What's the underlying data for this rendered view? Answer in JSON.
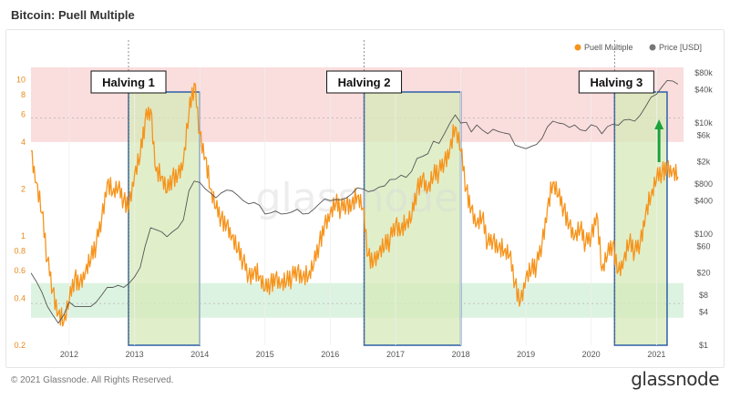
{
  "page": {
    "title": "Bitcoin: Puell Multiple",
    "copyright": "© 2021 Glassnode. All Rights Reserved.",
    "brand": "glassnode",
    "watermark": "glassnode"
  },
  "colors": {
    "puell": "#f7931a",
    "price": "#555555",
    "upper_band": "#f9d5d5",
    "lower_band": "#d5f0da",
    "halving_fill": "#d6eab8",
    "halving_border": "#2e5fa8",
    "arrow": "#1aa33a"
  },
  "chart_data": {
    "type": "line",
    "title": "Bitcoin: Puell Multiple",
    "legend": {
      "placement": "top-right",
      "items": [
        {
          "name": "Puell Multiple",
          "color": "#f7931a"
        },
        {
          "name": "Price [USD]",
          "color": "#777777"
        }
      ]
    },
    "x_axis": {
      "type": "date",
      "range": [
        "2011-06-01",
        "2021-06-01"
      ],
      "tick_labels": [
        "2012",
        "2013",
        "2014",
        "2015",
        "2016",
        "2017",
        "2018",
        "2019",
        "2020",
        "2021"
      ],
      "tick_values": [
        "2012-01-01",
        "2013-01-01",
        "2014-01-01",
        "2015-01-01",
        "2016-01-01",
        "2017-01-01",
        "2018-01-01",
        "2019-01-01",
        "2020-01-01",
        "2021-01-01"
      ]
    },
    "y_left": {
      "scale": "log",
      "range": [
        0.2,
        12
      ],
      "tick_labels": [
        "0.2",
        "0.4",
        "0.6",
        "0.8",
        "1",
        "2",
        "4",
        "6",
        "8",
        "10"
      ],
      "tick_values": [
        0.2,
        0.4,
        0.6,
        0.8,
        1,
        2,
        4,
        6,
        8,
        10
      ]
    },
    "y_right": {
      "scale": "log",
      "range": [
        1,
        100000
      ],
      "tick_labels": [
        "$1",
        "$4",
        "$8",
        "$20",
        "$60",
        "$100",
        "$400",
        "$800",
        "$2k",
        "$6k",
        "$10k",
        "$40k",
        "$80k"
      ],
      "tick_values": [
        1,
        4,
        8,
        20,
        60,
        100,
        400,
        800,
        2000,
        6000,
        10000,
        40000,
        80000
      ]
    },
    "bands": [
      {
        "name": "upper",
        "from": 4,
        "to": 12,
        "color": "#f9d5d5"
      },
      {
        "name": "lower",
        "from": 0.3,
        "to": 0.5,
        "color": "#d5f0da"
      }
    ],
    "reference_lines": [
      5.7,
      0.37
    ],
    "halvings": [
      {
        "label": "Halving 1",
        "date": "2012-11-28",
        "box_end": "2014-01-01"
      },
      {
        "label": "Halving 2",
        "date": "2016-07-09",
        "box_end": "2018-01-01"
      },
      {
        "label": "Halving 3",
        "date": "2020-05-11",
        "box_end": "2021-03-01"
      }
    ],
    "series": [
      {
        "name": "Puell Multiple",
        "axis": "left",
        "points": [
          [
            "2011-06-01",
            3.5
          ],
          [
            "2011-07-01",
            2.2
          ],
          [
            "2011-08-01",
            1.4
          ],
          [
            "2011-09-01",
            0.7
          ],
          [
            "2011-10-01",
            0.45
          ],
          [
            "2011-11-01",
            0.32
          ],
          [
            "2011-12-01",
            0.28
          ],
          [
            "2012-01-01",
            0.38
          ],
          [
            "2012-02-01",
            0.55
          ],
          [
            "2012-03-01",
            0.5
          ],
          [
            "2012-04-01",
            0.6
          ],
          [
            "2012-05-01",
            0.7
          ],
          [
            "2012-06-01",
            0.9
          ],
          [
            "2012-07-01",
            1.3
          ],
          [
            "2012-08-01",
            2.2
          ],
          [
            "2012-09-01",
            1.9
          ],
          [
            "2012-10-01",
            2.0
          ],
          [
            "2012-11-01",
            1.7
          ],
          [
            "2012-12-01",
            1.6
          ],
          [
            "2013-01-01",
            2.5
          ],
          [
            "2013-02-01",
            3.2
          ],
          [
            "2013-03-01",
            5.5
          ],
          [
            "2013-04-01",
            6.5
          ],
          [
            "2013-05-01",
            2.6
          ],
          [
            "2013-06-01",
            2.4
          ],
          [
            "2013-07-01",
            1.9
          ],
          [
            "2013-08-01",
            2.4
          ],
          [
            "2013-09-01",
            2.5
          ],
          [
            "2013-10-01",
            3.0
          ],
          [
            "2013-11-01",
            6.0
          ],
          [
            "2013-12-01",
            9.5
          ],
          [
            "2014-01-01",
            4.5
          ],
          [
            "2014-02-01",
            3.2
          ],
          [
            "2014-03-01",
            2.0
          ],
          [
            "2014-04-01",
            1.5
          ],
          [
            "2014-05-01",
            1.3
          ],
          [
            "2014-06-01",
            1.2
          ],
          [
            "2014-07-01",
            1.0
          ],
          [
            "2014-08-01",
            0.8
          ],
          [
            "2014-09-01",
            0.7
          ],
          [
            "2014-10-01",
            0.55
          ],
          [
            "2014-11-01",
            0.6
          ],
          [
            "2014-12-01",
            0.55
          ],
          [
            "2015-01-01",
            0.45
          ],
          [
            "2015-02-01",
            0.5
          ],
          [
            "2015-03-01",
            0.55
          ],
          [
            "2015-04-01",
            0.5
          ],
          [
            "2015-05-01",
            0.5
          ],
          [
            "2015-06-01",
            0.55
          ],
          [
            "2015-07-01",
            0.6
          ],
          [
            "2015-08-01",
            0.55
          ],
          [
            "2015-09-01",
            0.55
          ],
          [
            "2015-10-01",
            0.65
          ],
          [
            "2015-11-01",
            0.9
          ],
          [
            "2015-12-01",
            1.2
          ],
          [
            "2016-01-01",
            1.4
          ],
          [
            "2016-02-01",
            1.6
          ],
          [
            "2016-03-01",
            1.5
          ],
          [
            "2016-04-01",
            1.6
          ],
          [
            "2016-05-01",
            1.6
          ],
          [
            "2016-06-01",
            1.8
          ],
          [
            "2016-07-01",
            1.5
          ],
          [
            "2016-08-01",
            0.75
          ],
          [
            "2016-09-01",
            0.7
          ],
          [
            "2016-10-01",
            0.8
          ],
          [
            "2016-11-01",
            0.85
          ],
          [
            "2016-12-01",
            0.95
          ],
          [
            "2017-01-01",
            1.2
          ],
          [
            "2017-02-01",
            1.1
          ],
          [
            "2017-03-01",
            1.2
          ],
          [
            "2017-04-01",
            1.3
          ],
          [
            "2017-05-01",
            2.0
          ],
          [
            "2017-06-01",
            2.4
          ],
          [
            "2017-07-01",
            2.0
          ],
          [
            "2017-08-01",
            2.4
          ],
          [
            "2017-09-01",
            2.6
          ],
          [
            "2017-10-01",
            3.0
          ],
          [
            "2017-11-01",
            3.6
          ],
          [
            "2017-12-01",
            5.0
          ],
          [
            "2018-01-01",
            3.5
          ],
          [
            "2018-02-01",
            2.0
          ],
          [
            "2018-03-01",
            1.5
          ],
          [
            "2018-04-01",
            1.2
          ],
          [
            "2018-05-01",
            1.3
          ],
          [
            "2018-06-01",
            0.9
          ],
          [
            "2018-07-01",
            0.95
          ],
          [
            "2018-08-01",
            0.85
          ],
          [
            "2018-09-01",
            0.8
          ],
          [
            "2018-10-01",
            0.75
          ],
          [
            "2018-11-01",
            0.5
          ],
          [
            "2018-12-01",
            0.38
          ],
          [
            "2019-01-01",
            0.55
          ],
          [
            "2019-02-01",
            0.6
          ],
          [
            "2019-03-01",
            0.65
          ],
          [
            "2019-04-01",
            0.9
          ],
          [
            "2019-05-01",
            1.5
          ],
          [
            "2019-06-01",
            2.2
          ],
          [
            "2019-07-01",
            1.8
          ],
          [
            "2019-08-01",
            1.5
          ],
          [
            "2019-09-01",
            1.2
          ],
          [
            "2019-10-01",
            1.0
          ],
          [
            "2019-11-01",
            1.1
          ],
          [
            "2019-12-01",
            0.9
          ],
          [
            "2020-01-01",
            1.0
          ],
          [
            "2020-02-01",
            1.4
          ],
          [
            "2020-03-01",
            0.6
          ],
          [
            "2020-04-01",
            0.75
          ],
          [
            "2020-05-01",
            0.9
          ],
          [
            "2020-06-01",
            0.6
          ],
          [
            "2020-07-01",
            0.7
          ],
          [
            "2020-08-01",
            0.9
          ],
          [
            "2020-09-01",
            0.8
          ],
          [
            "2020-10-01",
            0.9
          ],
          [
            "2020-11-01",
            1.4
          ],
          [
            "2020-12-01",
            1.8
          ],
          [
            "2021-01-01",
            2.3
          ],
          [
            "2021-02-01",
            2.6
          ],
          [
            "2021-03-01",
            2.8
          ],
          [
            "2021-04-01",
            2.6
          ],
          [
            "2021-05-01",
            2.4
          ]
        ]
      },
      {
        "name": "Price [USD]",
        "axis": "right",
        "points": [
          [
            "2011-06-01",
            20
          ],
          [
            "2011-07-01",
            14
          ],
          [
            "2011-08-01",
            9
          ],
          [
            "2011-09-01",
            5
          ],
          [
            "2011-10-01",
            3.5
          ],
          [
            "2011-11-01",
            2.5
          ],
          [
            "2011-12-01",
            3.5
          ],
          [
            "2012-01-01",
            6
          ],
          [
            "2012-02-01",
            5
          ],
          [
            "2012-03-01",
            5
          ],
          [
            "2012-04-01",
            5
          ],
          [
            "2012-05-01",
            5
          ],
          [
            "2012-06-01",
            6
          ],
          [
            "2012-07-01",
            8
          ],
          [
            "2012-08-01",
            11
          ],
          [
            "2012-09-01",
            11
          ],
          [
            "2012-10-01",
            12
          ],
          [
            "2012-11-01",
            11
          ],
          [
            "2012-12-01",
            13
          ],
          [
            "2013-01-01",
            17
          ],
          [
            "2013-02-01",
            25
          ],
          [
            "2013-03-01",
            60
          ],
          [
            "2013-04-01",
            130
          ],
          [
            "2013-05-01",
            120
          ],
          [
            "2013-06-01",
            110
          ],
          [
            "2013-07-01",
            90
          ],
          [
            "2013-08-01",
            110
          ],
          [
            "2013-09-01",
            130
          ],
          [
            "2013-10-01",
            180
          ],
          [
            "2013-11-01",
            600
          ],
          [
            "2013-12-01",
            900
          ],
          [
            "2014-01-01",
            850
          ],
          [
            "2014-02-01",
            650
          ],
          [
            "2014-03-01",
            550
          ],
          [
            "2014-04-01",
            450
          ],
          [
            "2014-05-01",
            550
          ],
          [
            "2014-06-01",
            620
          ],
          [
            "2014-07-01",
            600
          ],
          [
            "2014-08-01",
            500
          ],
          [
            "2014-09-01",
            400
          ],
          [
            "2014-10-01",
            350
          ],
          [
            "2014-11-01",
            370
          ],
          [
            "2014-12-01",
            330
          ],
          [
            "2015-01-01",
            230
          ],
          [
            "2015-02-01",
            240
          ],
          [
            "2015-03-01",
            260
          ],
          [
            "2015-04-01",
            230
          ],
          [
            "2015-05-01",
            235
          ],
          [
            "2015-06-01",
            250
          ],
          [
            "2015-07-01",
            280
          ],
          [
            "2015-08-01",
            230
          ],
          [
            "2015-09-01",
            235
          ],
          [
            "2015-10-01",
            280
          ],
          [
            "2015-11-01",
            350
          ],
          [
            "2015-12-01",
            430
          ],
          [
            "2016-01-01",
            400
          ],
          [
            "2016-02-01",
            420
          ],
          [
            "2016-03-01",
            415
          ],
          [
            "2016-04-01",
            450
          ],
          [
            "2016-05-01",
            530
          ],
          [
            "2016-06-01",
            680
          ],
          [
            "2016-07-01",
            650
          ],
          [
            "2016-08-01",
            580
          ],
          [
            "2016-09-01",
            610
          ],
          [
            "2016-10-01",
            700
          ],
          [
            "2016-11-01",
            740
          ],
          [
            "2016-12-01",
            960
          ],
          [
            "2017-01-01",
            970
          ],
          [
            "2017-02-01",
            1150
          ],
          [
            "2017-03-01",
            1050
          ],
          [
            "2017-04-01",
            1350
          ],
          [
            "2017-05-01",
            2300
          ],
          [
            "2017-06-01",
            2500
          ],
          [
            "2017-07-01",
            2800
          ],
          [
            "2017-08-01",
            4700
          ],
          [
            "2017-09-01",
            4300
          ],
          [
            "2017-10-01",
            6400
          ],
          [
            "2017-11-01",
            9900
          ],
          [
            "2017-12-01",
            14000
          ],
          [
            "2018-01-01",
            10000
          ],
          [
            "2018-02-01",
            10300
          ],
          [
            "2018-03-01",
            6900
          ],
          [
            "2018-04-01",
            9200
          ],
          [
            "2018-05-01",
            7500
          ],
          [
            "2018-06-01",
            6400
          ],
          [
            "2018-07-01",
            7700
          ],
          [
            "2018-08-01",
            7000
          ],
          [
            "2018-09-01",
            6600
          ],
          [
            "2018-10-01",
            6300
          ],
          [
            "2018-11-01",
            4000
          ],
          [
            "2018-12-01",
            3700
          ],
          [
            "2019-01-01",
            3450
          ],
          [
            "2019-02-01",
            3800
          ],
          [
            "2019-03-01",
            4100
          ],
          [
            "2019-04-01",
            5300
          ],
          [
            "2019-05-01",
            8500
          ],
          [
            "2019-06-01",
            10800
          ],
          [
            "2019-07-01",
            10000
          ],
          [
            "2019-08-01",
            9600
          ],
          [
            "2019-09-01",
            8300
          ],
          [
            "2019-10-01",
            9200
          ],
          [
            "2019-11-01",
            7500
          ],
          [
            "2019-12-01",
            7200
          ],
          [
            "2020-01-01",
            9300
          ],
          [
            "2020-02-01",
            8600
          ],
          [
            "2020-03-01",
            6400
          ],
          [
            "2020-04-01",
            8600
          ],
          [
            "2020-05-01",
            9500
          ],
          [
            "2020-06-01",
            9100
          ],
          [
            "2020-07-01",
            11300
          ],
          [
            "2020-08-01",
            11600
          ],
          [
            "2020-09-01",
            10800
          ],
          [
            "2020-10-01",
            13800
          ],
          [
            "2020-11-01",
            19700
          ],
          [
            "2020-12-01",
            29000
          ],
          [
            "2021-01-01",
            33000
          ],
          [
            "2021-02-01",
            45000
          ],
          [
            "2021-03-01",
            58000
          ],
          [
            "2021-04-01",
            57000
          ],
          [
            "2021-05-01",
            50000
          ]
        ]
      }
    ]
  }
}
